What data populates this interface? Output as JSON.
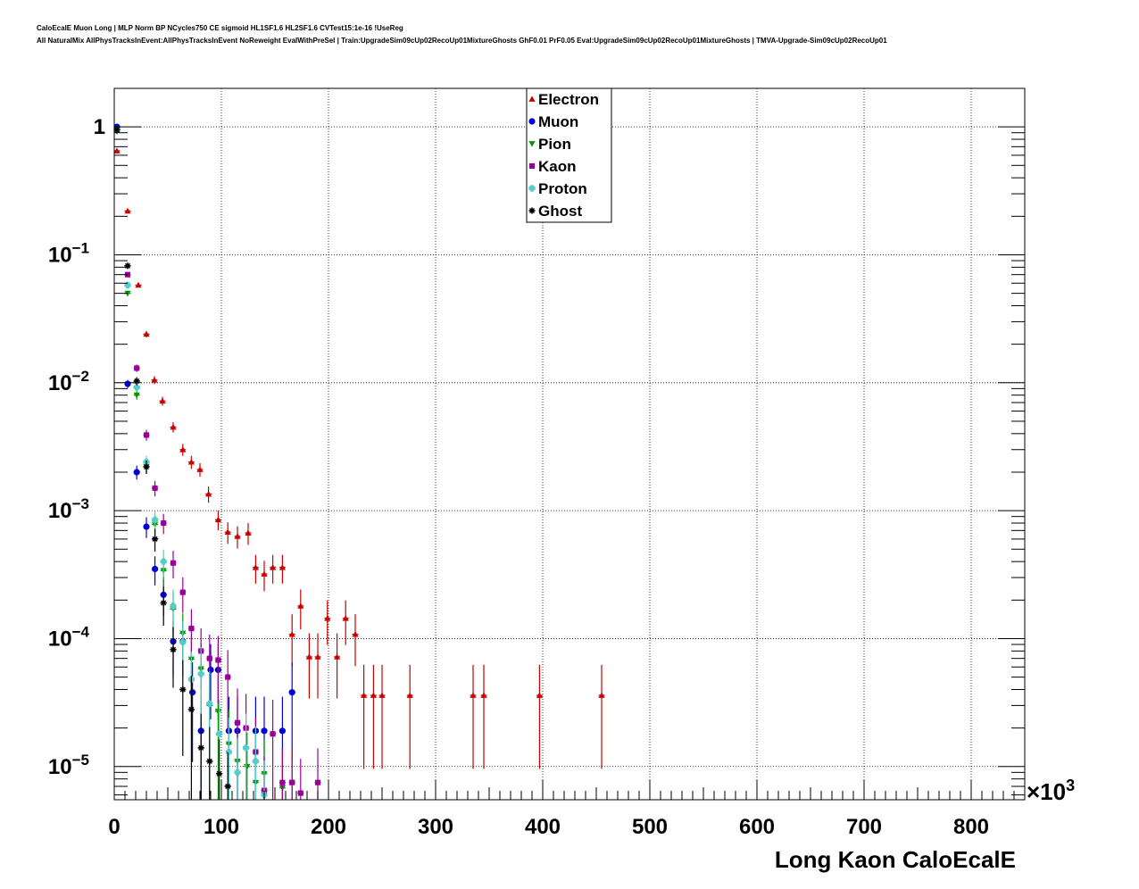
{
  "header": {
    "title_line1": "CaloEcalE Muon Long | MLP Norm BP NCycles750 CE sigmoid HL1SF1.6 HL2SF1.6 CVTest15:1e-16 !UseReg",
    "title_line2": "All NaturalMix AllPhysTracksInEvent:AllPhysTracksInEvent NoReweight EvalWithPreSel | Train:UpgradeSim09cUp02RecoUp01MixtureGhosts GhF0.01 PrF0.05 Eval:UpgradeSim09cUp02RecoUp01MixtureGhosts | TMVA-Upgrade-Sim09cUp02RecoUp01"
  },
  "chart_data": {
    "type": "scatter",
    "xlabel": "Long Kaon CaloEcalE",
    "x_multiplier_label": "×10",
    "x_multiplier_exp": "3",
    "xlim": [
      0,
      850
    ],
    "ylim": [
      5.5e-06,
      2.0
    ],
    "y_scale": "log",
    "grid": true,
    "legend_position": "top-center",
    "x_ticks": [
      {
        "value": 0,
        "label": "0"
      },
      {
        "value": 100,
        "label": "100"
      },
      {
        "value": 200,
        "label": "200"
      },
      {
        "value": 300,
        "label": "300"
      },
      {
        "value": 400,
        "label": "400"
      },
      {
        "value": 500,
        "label": "500"
      },
      {
        "value": 600,
        "label": "600"
      },
      {
        "value": 700,
        "label": "700"
      },
      {
        "value": 800,
        "label": "800"
      }
    ],
    "y_ticks": [
      {
        "value": 1,
        "base": "1",
        "exp": ""
      },
      {
        "value": 0.1,
        "base": "10",
        "exp": "−1"
      },
      {
        "value": 0.01,
        "base": "10",
        "exp": "−2"
      },
      {
        "value": 0.001,
        "base": "10",
        "exp": "−3"
      },
      {
        "value": 0.0001,
        "base": "10",
        "exp": "−4"
      },
      {
        "value": 1e-05,
        "base": "10",
        "exp": "−5"
      }
    ],
    "series": [
      {
        "name": "Electron",
        "color": "#cc0000",
        "marker": "triangle-up",
        "points": [
          [
            2.5,
            0.65
          ],
          [
            12.5,
            0.22
          ],
          [
            22.5,
            0.058
          ],
          [
            30,
            0.024
          ],
          [
            37.5,
            0.0105
          ],
          [
            45,
            0.0072
          ],
          [
            55,
            0.0045
          ],
          [
            64,
            0.003
          ],
          [
            72,
            0.0024
          ],
          [
            80,
            0.0021
          ],
          [
            88,
            0.00135
          ],
          [
            97,
            0.00085
          ],
          [
            106,
            0.00068
          ],
          [
            115,
            0.00063
          ],
          [
            125,
            0.00067
          ],
          [
            132,
            0.00036
          ],
          [
            140,
            0.00032
          ],
          [
            148,
            0.00036
          ],
          [
            157,
            0.00036
          ],
          [
            166,
            0.000108
          ],
          [
            174,
            0.00018
          ],
          [
            182,
            7.2e-05
          ],
          [
            190,
            7.2e-05
          ],
          [
            199,
            0.000144
          ],
          [
            208,
            7.2e-05
          ],
          [
            216,
            0.000144
          ],
          [
            225,
            0.000108
          ],
          [
            233,
            3.6e-05
          ],
          [
            242,
            3.6e-05
          ],
          [
            250,
            3.6e-05
          ],
          [
            276,
            3.6e-05
          ],
          [
            335,
            3.6e-05
          ],
          [
            345,
            3.6e-05
          ],
          [
            397,
            3.6e-05
          ],
          [
            455,
            3.6e-05
          ]
        ]
      },
      {
        "name": "Muon",
        "color": "#0000dd",
        "marker": "circle",
        "points": [
          [
            2.5,
            1.0
          ],
          [
            12.5,
            0.0098
          ],
          [
            21,
            0.002
          ],
          [
            30,
            0.00075
          ],
          [
            38,
            0.00035
          ],
          [
            46,
            0.00022
          ],
          [
            55,
            9.5e-05
          ],
          [
            64,
            9.5e-05
          ],
          [
            73,
            3.8e-05
          ],
          [
            81,
            1.9e-05
          ],
          [
            90,
            5.7e-05
          ],
          [
            97,
            5.7e-05
          ],
          [
            107,
            1.9e-05
          ],
          [
            115,
            1.9e-05
          ],
          [
            132,
            1.9e-05
          ],
          [
            140,
            1.9e-05
          ],
          [
            157,
            1.9e-05
          ],
          [
            166,
            3.8e-05
          ]
        ]
      },
      {
        "name": "Pion",
        "color": "#009900",
        "marker": "triangle-down",
        "points": [
          [
            2.5,
            0.92
          ],
          [
            12.5,
            0.05
          ],
          [
            21,
            0.008
          ],
          [
            30,
            0.0022
          ],
          [
            38,
            0.00078
          ],
          [
            46,
            0.00034
          ],
          [
            55,
            0.00017
          ],
          [
            64,
            0.00011
          ],
          [
            72,
            6.9e-05
          ],
          [
            81,
            5.8e-05
          ],
          [
            89,
            3e-05
          ],
          [
            97,
            2.7e-05
          ],
          [
            107,
            1.5e-05
          ],
          [
            115,
            1.1e-05
          ],
          [
            124,
            1e-05
          ],
          [
            132,
            7.5e-06
          ],
          [
            140,
            8.8e-06
          ],
          [
            157,
            6.8e-06
          ],
          [
            166,
            7.5e-06
          ]
        ]
      },
      {
        "name": "Kaon",
        "color": "#990099",
        "marker": "square",
        "points": [
          [
            2.5,
            0.95
          ],
          [
            12.5,
            0.07
          ],
          [
            21,
            0.013
          ],
          [
            30,
            0.0039
          ],
          [
            38,
            0.0015
          ],
          [
            46,
            0.0008
          ],
          [
            55,
            0.00039
          ],
          [
            64,
            0.00023
          ],
          [
            72,
            0.00012
          ],
          [
            81,
            8e-05
          ],
          [
            89,
            7e-05
          ],
          [
            97,
            6.8e-05
          ],
          [
            106,
            5e-05
          ],
          [
            115,
            2.2e-05
          ],
          [
            123,
            2e-05
          ],
          [
            132,
            1.3e-05
          ],
          [
            140,
            6.5e-06
          ],
          [
            148,
            1.8e-05
          ],
          [
            157,
            7.5e-06
          ],
          [
            166,
            7.5e-06
          ],
          [
            174,
            6.2e-06
          ],
          [
            190,
            7.5e-06
          ]
        ]
      },
      {
        "name": "Proton",
        "color": "#55cccc",
        "marker": "cross",
        "points": [
          [
            2.5,
            0.95
          ],
          [
            12.5,
            0.058
          ],
          [
            21,
            0.0092
          ],
          [
            30,
            0.0024
          ],
          [
            38,
            0.00085
          ],
          [
            46,
            0.0004
          ],
          [
            55,
            0.00018
          ],
          [
            64,
            9.4e-05
          ],
          [
            72,
            4.8e-05
          ],
          [
            81,
            5.3e-05
          ],
          [
            89,
            3.1e-05
          ],
          [
            98,
            1.8e-05
          ],
          [
            107,
            1.3e-05
          ],
          [
            115,
            9e-06
          ],
          [
            123,
            1.4e-05
          ],
          [
            132,
            1.1e-05
          ],
          [
            140,
            6e-06
          ]
        ]
      },
      {
        "name": "Ghost",
        "color": "#000000",
        "marker": "star",
        "points": [
          [
            2.5,
            0.95
          ],
          [
            12.5,
            0.082
          ],
          [
            21,
            0.0103
          ],
          [
            30,
            0.0022
          ],
          [
            38,
            0.0006
          ],
          [
            46,
            0.00019
          ],
          [
            55,
            8.2e-05
          ],
          [
            64,
            4e-05
          ],
          [
            72,
            2.8e-05
          ],
          [
            81,
            1.4e-05
          ],
          [
            89,
            1.1e-05
          ],
          [
            98,
            8.8e-06
          ],
          [
            106,
            7e-06
          ]
        ]
      }
    ]
  }
}
